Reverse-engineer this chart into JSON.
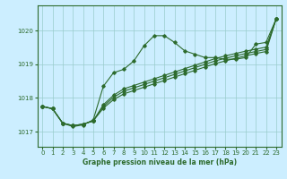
{
  "xlabel": "Graphe pression niveau de la mer (hPa)",
  "xlim": [
    -0.5,
    23.5
  ],
  "ylim": [
    1016.55,
    1020.75
  ],
  "yticks": [
    1017,
    1018,
    1019,
    1020
  ],
  "xticks": [
    0,
    1,
    2,
    3,
    4,
    5,
    6,
    7,
    8,
    9,
    10,
    11,
    12,
    13,
    14,
    15,
    16,
    17,
    18,
    19,
    20,
    21,
    22,
    23
  ],
  "bg_color": "#cceeff",
  "grid_color": "#99cccc",
  "line_color": "#2d6b2d",
  "line1": [
    1017.75,
    1017.68,
    1017.25,
    1017.15,
    1017.2,
    1017.35,
    1018.35,
    1018.75,
    1018.85,
    1019.1,
    1019.55,
    1019.85,
    1019.85,
    1019.65,
    1019.4,
    1019.3,
    1019.2,
    1019.2,
    1019.15,
    1019.15,
    1019.2,
    1019.6,
    1019.65,
    1020.35
  ],
  "line2": [
    1017.75,
    1017.68,
    1017.25,
    1017.18,
    1017.22,
    1017.32,
    1017.7,
    1017.95,
    1018.12,
    1018.22,
    1018.32,
    1018.42,
    1018.52,
    1018.62,
    1018.72,
    1018.82,
    1018.92,
    1019.02,
    1019.1,
    1019.18,
    1019.25,
    1019.32,
    1019.38,
    1020.35
  ],
  "line3": [
    1017.75,
    1017.68,
    1017.25,
    1017.18,
    1017.22,
    1017.32,
    1017.75,
    1018.02,
    1018.2,
    1018.3,
    1018.4,
    1018.5,
    1018.6,
    1018.7,
    1018.8,
    1018.9,
    1019.0,
    1019.1,
    1019.18,
    1019.25,
    1019.32,
    1019.38,
    1019.44,
    1020.35
  ],
  "line4": [
    1017.75,
    1017.68,
    1017.25,
    1017.18,
    1017.22,
    1017.32,
    1017.8,
    1018.08,
    1018.27,
    1018.37,
    1018.47,
    1018.57,
    1018.67,
    1018.77,
    1018.87,
    1018.97,
    1019.07,
    1019.17,
    1019.25,
    1019.32,
    1019.39,
    1019.45,
    1019.51,
    1020.35
  ]
}
